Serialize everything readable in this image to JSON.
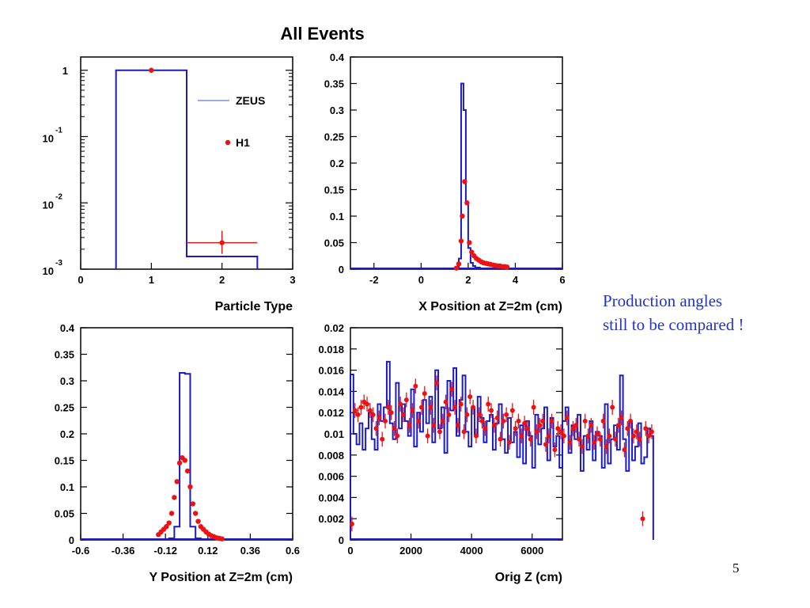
{
  "title": "All Events",
  "note": [
    "Production angles",
    "still to be compared !"
  ],
  "page_number": "5",
  "colors": {
    "zeus": "#1a1acc",
    "h1": "#ee1111",
    "legend_line": "#7a8fe0"
  },
  "legend": {
    "zeus": "ZEUS",
    "h1": "H1"
  },
  "chart_data": [
    {
      "type": "histogram",
      "id": "particle",
      "xlabel": "Particle Type",
      "xlim": [
        0,
        3
      ],
      "ylim_log10": [
        -3,
        0.2
      ],
      "yscale": "log",
      "xticks": [
        "0",
        "1",
        "2",
        "3"
      ],
      "yticks": [
        {
          "base": "1",
          "exp": ""
        },
        {
          "base": "10",
          "exp": "-1"
        },
        {
          "base": "10",
          "exp": "-2"
        },
        {
          "base": "10",
          "exp": "-3"
        }
      ],
      "zeus_bins": [
        [
          0.5,
          1.5,
          1.0
        ],
        [
          1.5,
          2.5,
          0.00155
        ]
      ],
      "h1_points": [
        [
          1,
          1.0,
          0,
          0,
          0
        ],
        [
          2,
          0.0025,
          0.5,
          0.0017,
          0.0038
        ]
      ]
    },
    {
      "type": "histogram",
      "id": "xpos",
      "xlabel": "X Position at Z=2m (cm)",
      "xlim": [
        -3,
        6
      ],
      "ylim": [
        0,
        0.4
      ],
      "xticks": [
        "-2",
        "0",
        "2",
        "4",
        "6"
      ],
      "yticks": [
        "0",
        "0.05",
        "0.1",
        "0.15",
        "0.2",
        "0.25",
        "0.3",
        "0.35",
        "0.4"
      ],
      "zeus_bins": [
        [
          1.5,
          1.6,
          0.003
        ],
        [
          1.6,
          1.7,
          0.02
        ],
        [
          1.7,
          1.8,
          0.35
        ],
        [
          1.8,
          1.9,
          0.3
        ],
        [
          1.9,
          2.0,
          0.125
        ],
        [
          2.0,
          2.1,
          0.04
        ],
        [
          2.1,
          2.2,
          0.012
        ],
        [
          2.2,
          2.3,
          0.006
        ],
        [
          2.3,
          2.5,
          0.003
        ],
        [
          2.5,
          2.8,
          0.0015
        ]
      ],
      "h1_points": [
        [
          1.5,
          0.002
        ],
        [
          1.6,
          0.01
        ],
        [
          1.7,
          0.053
        ],
        [
          1.75,
          0.1
        ],
        [
          1.85,
          0.165
        ],
        [
          1.95,
          0.125
        ],
        [
          2.05,
          0.05
        ],
        [
          2.15,
          0.032
        ],
        [
          2.25,
          0.025
        ],
        [
          2.35,
          0.02
        ],
        [
          2.45,
          0.017
        ],
        [
          2.55,
          0.014
        ],
        [
          2.65,
          0.012
        ],
        [
          2.75,
          0.011
        ],
        [
          2.85,
          0.01
        ],
        [
          2.95,
          0.009
        ],
        [
          3.05,
          0.008
        ],
        [
          3.15,
          0.007
        ],
        [
          3.25,
          0.006
        ],
        [
          3.35,
          0.006
        ],
        [
          3.45,
          0.005
        ],
        [
          3.55,
          0.005
        ],
        [
          3.65,
          0.004
        ]
      ]
    },
    {
      "type": "histogram",
      "id": "ypos",
      "xlabel": "Y Position at Z=2m (cm)",
      "xlim": [
        -0.6,
        0.6
      ],
      "ylim": [
        0,
        0.4
      ],
      "xticks": [
        "-0.6",
        "-0.36",
        "-0.12",
        "0.12",
        "0.36",
        "0.6"
      ],
      "xtick_values": [
        -0.6,
        -0.36,
        -0.12,
        0.12,
        0.36,
        0.6
      ],
      "yticks": [
        "0",
        "0.05",
        "0.1",
        "0.15",
        "0.2",
        "0.25",
        "0.3",
        "0.35",
        "0.4"
      ],
      "zeus_bins": [
        [
          -0.1,
          -0.07,
          0.003
        ],
        [
          -0.07,
          -0.04,
          0.025
        ],
        [
          -0.04,
          -0.01,
          0.315
        ],
        [
          -0.01,
          0.02,
          0.313
        ],
        [
          0.02,
          0.05,
          0.025
        ],
        [
          0.05,
          0.08,
          0.003
        ]
      ],
      "h1_points": [
        [
          -0.16,
          0.01
        ],
        [
          -0.145,
          0.015
        ],
        [
          -0.13,
          0.02
        ],
        [
          -0.115,
          0.025
        ],
        [
          -0.1,
          0.032
        ],
        [
          -0.085,
          0.05
        ],
        [
          -0.07,
          0.08
        ],
        [
          -0.055,
          0.11
        ],
        [
          -0.04,
          0.145
        ],
        [
          -0.025,
          0.155
        ],
        [
          -0.01,
          0.15
        ],
        [
          0.005,
          0.13
        ],
        [
          0.02,
          0.1
        ],
        [
          0.035,
          0.068
        ],
        [
          0.05,
          0.05
        ],
        [
          0.065,
          0.035
        ],
        [
          0.08,
          0.025
        ],
        [
          0.095,
          0.02
        ],
        [
          0.11,
          0.015
        ],
        [
          0.125,
          0.011
        ],
        [
          0.14,
          0.008
        ],
        [
          0.155,
          0.006
        ],
        [
          0.17,
          0.004
        ],
        [
          0.185,
          0.003
        ],
        [
          0.2,
          0.002
        ]
      ]
    },
    {
      "type": "histogram",
      "id": "origz",
      "xlabel": "Orig Z (cm)",
      "xlim": [
        0,
        7000
      ],
      "ylim": [
        0,
        0.02
      ],
      "xticks": [
        "0",
        "2000",
        "4000",
        "6000"
      ],
      "xtick_values": [
        0,
        2000,
        4000,
        6000
      ],
      "yticks": [
        "0",
        "0.002",
        "0.004",
        "0.006",
        "0.008",
        "0.01",
        "0.012",
        "0.014",
        "0.016",
        "0.018",
        "0.02"
      ],
      "zeus_bin_width": 100,
      "zeus_values": [
        0.0156,
        0.01,
        0.009,
        0.011,
        0.0085,
        0.0105,
        0.012,
        0.0095,
        0.0085,
        0.0128,
        0.0112,
        0.0125,
        0.0168,
        0.011,
        0.0095,
        0.0148,
        0.0105,
        0.0128,
        0.0112,
        0.0098,
        0.0142,
        0.0088,
        0.012,
        0.0102,
        0.0132,
        0.011,
        0.0135,
        0.0092,
        0.016,
        0.0105,
        0.0125,
        0.0082,
        0.015,
        0.0122,
        0.0162,
        0.0098,
        0.0132,
        0.0155,
        0.0102,
        0.0088,
        0.0125,
        0.0098,
        0.0135,
        0.0115,
        0.0092,
        0.0112,
        0.0118,
        0.0085,
        0.011,
        0.0128,
        0.0095,
        0.0082,
        0.0115,
        0.0092,
        0.0102,
        0.0078,
        0.0108,
        0.0072,
        0.0112,
        0.0098,
        0.0068,
        0.0118,
        0.009,
        0.0105,
        0.0125,
        0.0075,
        0.0115,
        0.0088,
        0.0098,
        0.0068,
        0.0112,
        0.0125,
        0.0082,
        0.0108,
        0.0095,
        0.0118,
        0.0065,
        0.0098,
        0.0085,
        0.0112,
        0.0075,
        0.0102,
        0.0098,
        0.0068,
        0.0128,
        0.0072,
        0.0095,
        0.0108,
        0.0085,
        0.0155,
        0.0095,
        0.0065,
        0.0112,
        0.0075,
        0.0088,
        0.011,
        0.0072,
        0.0078,
        0.0105,
        0.0098
      ],
      "h1_bin_width": 100,
      "h1_values": [
        0.0015,
        0.0122,
        0.0118,
        0.0125,
        0.013,
        0.0128,
        0.0122,
        0.0118,
        0.0105,
        0.0115,
        0.0095,
        0.0112,
        0.0125,
        0.012,
        0.0105,
        0.0098,
        0.0128,
        0.0118,
        0.0132,
        0.0108,
        0.0122,
        0.0145,
        0.0112,
        0.0125,
        0.0138,
        0.0098,
        0.0125,
        0.0108,
        0.0148,
        0.0102,
        0.0112,
        0.013,
        0.0118,
        0.0142,
        0.0125,
        0.0108,
        0.0128,
        0.0102,
        0.0118,
        0.0135,
        0.0125,
        0.0098,
        0.0118,
        0.0112,
        0.0105,
        0.0128,
        0.0122,
        0.0108,
        0.0115,
        0.0095,
        0.0112,
        0.0118,
        0.0092,
        0.0122,
        0.0105,
        0.0112,
        0.0098,
        0.011,
        0.0105,
        0.0095,
        0.0125,
        0.0102,
        0.0108,
        0.0112,
        0.009,
        0.0098,
        0.0112,
        0.0085,
        0.0105,
        0.0102,
        0.0098,
        0.0115,
        0.0092,
        0.0105,
        0.0108,
        0.0095,
        0.0088,
        0.0112,
        0.0098,
        0.0108,
        0.0092,
        0.01,
        0.0095,
        0.0112,
        0.0088,
        0.0098,
        0.0125,
        0.0095,
        0.0108,
        0.0115,
        0.0085,
        0.0105,
        0.0112,
        0.0098,
        0.0102,
        0.0095,
        0.002,
        0.0105,
        0.0098,
        0.0102
      ],
      "h1_error": 0.0007
    }
  ]
}
